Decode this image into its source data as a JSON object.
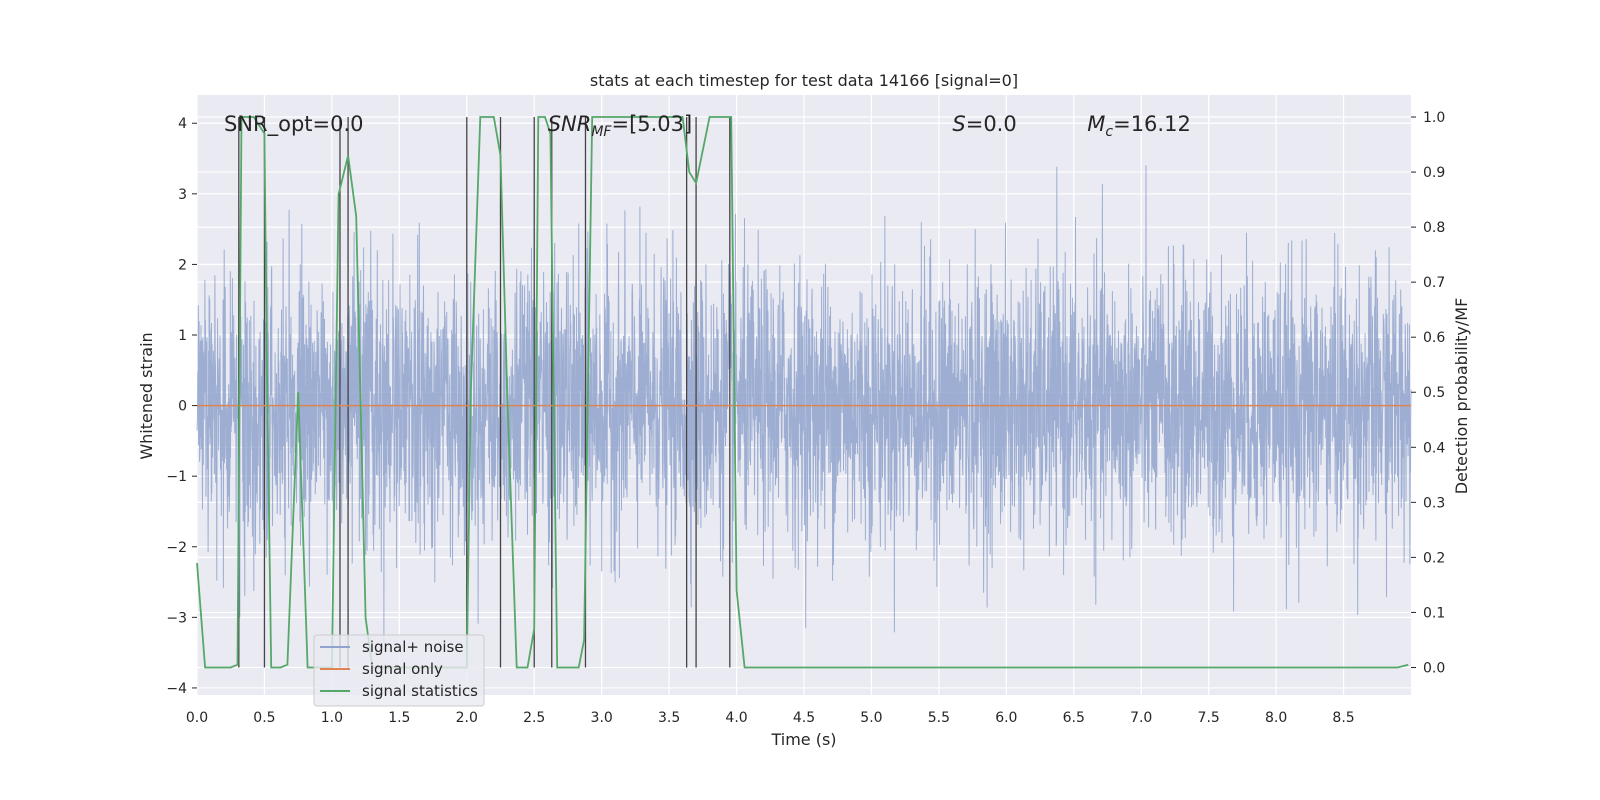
{
  "chart_data": {
    "type": "line",
    "title": "stats at each timestep for test data 14166 [signal=0]",
    "xlabel": "Time (s)",
    "ylabel": "Whitened strain",
    "y2label": "Detection probability/MF",
    "xlim": [
      0,
      9.0
    ],
    "ylim": [
      -4.1,
      4.4
    ],
    "y2lim": [
      -0.05,
      1.04
    ],
    "x_ticks": [
      "0.0",
      "0.5",
      "1.0",
      "1.5",
      "2.0",
      "2.5",
      "3.0",
      "3.5",
      "4.0",
      "4.5",
      "5.0",
      "5.5",
      "6.0",
      "6.5",
      "7.0",
      "7.5",
      "8.0",
      "8.5"
    ],
    "y_ticks": [
      "−4",
      "−3",
      "−2",
      "−1",
      "0",
      "1",
      "2",
      "3",
      "4"
    ],
    "y2_ticks": [
      "0.0",
      "0.1",
      "0.2",
      "0.3",
      "0.4",
      "0.5",
      "0.6",
      "0.7",
      "0.8",
      "0.9",
      "1.0"
    ],
    "grid": true,
    "legend_position": "lower-left",
    "annotations": [
      {
        "text": "SNR_opt=0.0",
        "x": 0.2,
        "y": 4.0
      },
      {
        "text": "SNR",
        "sub": "MF",
        "value": "=[5.03]",
        "x": 2.6,
        "y": 4.0
      },
      {
        "text": "S",
        "value": "=0.0",
        "x": 5.6,
        "y": 4.0
      },
      {
        "text": "M",
        "sub": "c",
        "value": "=16.12",
        "x": 6.6,
        "y": 4.0
      }
    ],
    "series": [
      {
        "name": "signal+ noise",
        "color": "#8fa3cc",
        "description_level": "whitened noise, approx ±1.5 with spikes to ±3.5",
        "noise_seed": 14166,
        "noise_sigma": 0.95
      },
      {
        "name": "signal only",
        "color": "#dd8452",
        "x": [
          0,
          9.0
        ],
        "y": [
          0,
          0
        ]
      },
      {
        "name": "signal statistics",
        "color": "#55a868",
        "axis": "right",
        "x": [
          0.0,
          0.06,
          0.15,
          0.25,
          0.3,
          0.33,
          0.37,
          0.42,
          0.5,
          0.52,
          0.55,
          0.62,
          0.67,
          0.75,
          0.82,
          0.88,
          0.93,
          1.0,
          1.05,
          1.12,
          1.18,
          1.25,
          1.3,
          1.4,
          1.55,
          1.75,
          1.9,
          2.0,
          2.03,
          2.1,
          2.2,
          2.25,
          2.3,
          2.37,
          2.45,
          2.5,
          2.53,
          2.58,
          2.62,
          2.67,
          2.75,
          2.83,
          2.87,
          2.93,
          3.0,
          3.5,
          3.6,
          3.65,
          3.7,
          3.8,
          3.9,
          3.96,
          4.0,
          4.06,
          4.1,
          4.5,
          5.0,
          5.5,
          6.0,
          6.5,
          7.0,
          7.5,
          8.0,
          8.5,
          8.9,
          8.98
        ],
        "y": [
          0.19,
          0.0,
          0.0,
          0.0,
          0.005,
          1.0,
          1.0,
          1.0,
          0.97,
          0.52,
          0.0,
          0.0,
          0.005,
          0.5,
          0.0,
          0.0,
          0.0,
          0.0,
          0.86,
          0.93,
          0.82,
          0.09,
          0.0,
          0.0,
          0.0,
          0.0,
          0.0,
          0.0,
          0.5,
          1.0,
          1.0,
          0.93,
          0.5,
          0.0,
          0.0,
          0.07,
          1.0,
          1.0,
          0.97,
          0.0,
          0.0,
          0.0,
          0.05,
          1.0,
          1.0,
          1.0,
          1.0,
          0.9,
          0.88,
          1.0,
          1.0,
          1.0,
          0.14,
          0.0,
          0.0,
          0.0,
          0.0,
          0.0,
          0.0,
          0.0,
          0.0,
          0.0,
          0.0,
          0.0,
          0.0,
          0.005
        ]
      }
    ],
    "vertical_markers": {
      "color": "#444444",
      "x": [
        0.31,
        0.5,
        1.06,
        1.12,
        2.0,
        2.25,
        2.5,
        2.63,
        2.88,
        3.63,
        3.7,
        3.95
      ],
      "y2_top": 1.0,
      "y2_bottom": 0.0
    }
  }
}
